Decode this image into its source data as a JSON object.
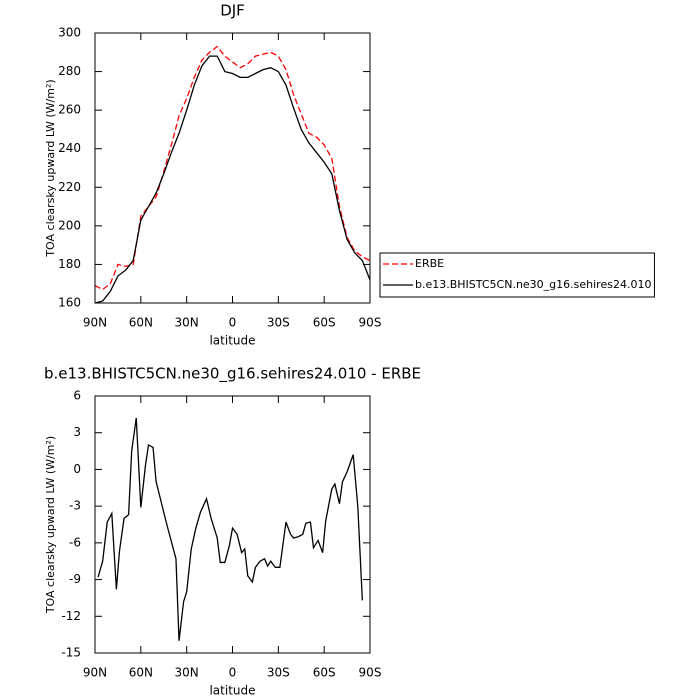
{
  "chart_data": [
    {
      "type": "line",
      "title": "DJF",
      "xlabel": "latitude",
      "ylabel": "TOA clearsky upward LW (W/m²)",
      "xlim": [
        90,
        -90
      ],
      "xticks": [
        {
          "value": 90,
          "label": "90N"
        },
        {
          "value": 60,
          "label": "60N"
        },
        {
          "value": 30,
          "label": "30N"
        },
        0,
        {
          "value": -30,
          "label": "30S"
        },
        {
          "value": -60,
          "label": "60S"
        },
        {
          "value": -90,
          "label": "90S"
        }
      ],
      "ylim": [
        160,
        300
      ],
      "yticks": [
        160,
        180,
        200,
        220,
        240,
        260,
        280,
        300
      ],
      "legend": "right",
      "x": [
        90,
        85,
        80,
        75,
        70,
        65,
        60,
        55,
        50,
        45,
        40,
        35,
        30,
        25,
        20,
        15,
        10,
        5,
        0,
        -5,
        -10,
        -15,
        -20,
        -25,
        -30,
        -35,
        -40,
        -45,
        -50,
        -55,
        -60,
        -65,
        -70,
        -75,
        -80,
        -85,
        -90
      ],
      "series": [
        {
          "name": "ERBE",
          "color": "#ff0000",
          "line_style": "dashed",
          "values": [
            169,
            167,
            170,
            180,
            179,
            180,
            205,
            210,
            215,
            228,
            242,
            257,
            266,
            277,
            286,
            290,
            293,
            288,
            285,
            282,
            284,
            288,
            289,
            290,
            288,
            281,
            268,
            258,
            248,
            246,
            242,
            235,
            210,
            194,
            187,
            184,
            182
          ]
        },
        {
          "name": "b.e13.BHISTC5CN.ne30_g16.sehires24.010",
          "color": "#000000",
          "line_style": "solid",
          "values": [
            160,
            161,
            166,
            174,
            177,
            182,
            203,
            210,
            217,
            227,
            238,
            248,
            260,
            273,
            283,
            288,
            288,
            280,
            279,
            277,
            277,
            279,
            281,
            282,
            280,
            273,
            261,
            250,
            243,
            238,
            233,
            227,
            208,
            193,
            186,
            182,
            172
          ]
        }
      ]
    },
    {
      "type": "line",
      "title": "b.e13.BHISTC5CN.ne30_g16.sehires24.010 - ERBE",
      "xlabel": "latitude",
      "ylabel": "TOA clearsky upward LW (W/m²)",
      "xlim": [
        90,
        -90
      ],
      "xticks": [
        {
          "value": 90,
          "label": "90N"
        },
        {
          "value": 60,
          "label": "60N"
        },
        {
          "value": 30,
          "label": "30N"
        },
        0,
        {
          "value": -30,
          "label": "30S"
        },
        {
          "value": -60,
          "label": "60S"
        },
        {
          "value": -90,
          "label": "90S"
        }
      ],
      "ylim": [
        -15,
        6
      ],
      "yticks": [
        -15,
        -12,
        -9,
        -6,
        -3,
        0,
        3,
        6
      ],
      "x": [
        88,
        85,
        82,
        79,
        76,
        74,
        71,
        68,
        66,
        63,
        60,
        57,
        55,
        52,
        50,
        46,
        43,
        40,
        37,
        35,
        32,
        30,
        27,
        24,
        21,
        17,
        14,
        10,
        8,
        5,
        2,
        0,
        -3,
        -6,
        -8,
        -10,
        -13,
        -15,
        -18,
        -21,
        -23,
        -25,
        -28,
        -31,
        -35,
        -38,
        -40,
        -43,
        -46,
        -48,
        -51,
        -53,
        -56,
        -59,
        -61,
        -65,
        -67,
        -70,
        -72,
        -75,
        -79,
        -82,
        -85
      ],
      "series": [
        {
          "color": "#000000",
          "line_style": "solid",
          "values": [
            -8.8,
            -7.5,
            -4.3,
            -3.6,
            -9.8,
            -6.7,
            -4.0,
            -3.7,
            1.5,
            4.2,
            -3.1,
            0.3,
            2.0,
            1.8,
            -1.0,
            -3.0,
            -4.5,
            -5.9,
            -7.3,
            -14.0,
            -10.8,
            -10.0,
            -6.5,
            -4.8,
            -3.5,
            -2.4,
            -4.0,
            -5.6,
            -7.6,
            -7.6,
            -6.2,
            -4.8,
            -5.3,
            -6.8,
            -6.5,
            -8.7,
            -9.2,
            -8.0,
            -7.5,
            -7.3,
            -7.9,
            -7.5,
            -8.0,
            -8.0,
            -4.3,
            -5.3,
            -5.6,
            -5.5,
            -5.3,
            -4.4,
            -4.3,
            -6.4,
            -5.8,
            -6.8,
            -4.2,
            -1.6,
            -1.2,
            -2.8,
            -1.0,
            -0.2,
            1.2,
            -3.0,
            -10.7
          ]
        }
      ]
    }
  ]
}
